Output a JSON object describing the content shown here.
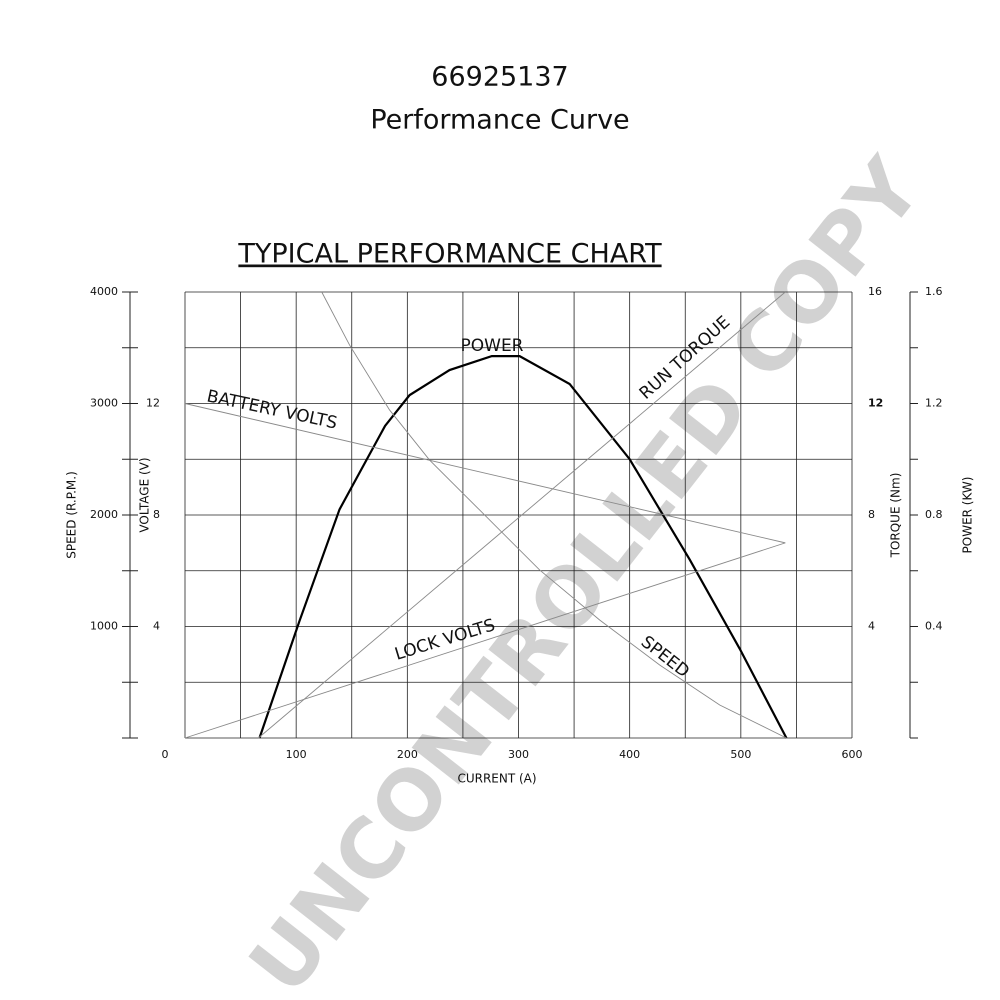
{
  "chart_data": {
    "type": "line",
    "title": "66925137",
    "subtitle": "Performance Curve",
    "chart_heading": "TYPICAL PERFORMANCE CHART",
    "watermark": "UNCONTROLLED COPY",
    "xlabel": "CURRENT (A)",
    "ylabel": "SPEED (R.P.M.)",
    "y2label": "VOLTAGE (V)",
    "y3label": "TORQUE (Nm)",
    "y4label": "POWER (KW)",
    "xlim": [
      0,
      600
    ],
    "xticks": [
      0,
      100,
      200,
      300,
      400,
      500,
      600
    ],
    "xgrid": [
      0,
      50,
      100,
      150,
      200,
      250,
      300,
      350,
      400,
      450,
      500,
      550,
      600
    ],
    "ylim": [
      0,
      4000
    ],
    "yticks": [
      1000,
      2000,
      3000,
      4000
    ],
    "ygrid": [
      0,
      500,
      1000,
      1500,
      2000,
      2500,
      3000,
      3500,
      4000
    ],
    "y2lim": [
      0,
      16
    ],
    "y2ticks": [
      4,
      8,
      12
    ],
    "y3lim": [
      0,
      16
    ],
    "y3ticks": [
      4,
      8,
      12,
      16
    ],
    "y4lim": [
      0,
      1.6
    ],
    "y4ticks": [
      0.4,
      0.8,
      1.2,
      1.6
    ],
    "series": [
      {
        "name": "POWER",
        "axis": "y4",
        "color": "#000000",
        "x": [
          67,
          103,
          139,
          180,
          202,
          238,
          276,
          301,
          346,
          400,
          454,
          499,
          541
        ],
        "values": [
          0,
          0.42,
          0.82,
          1.12,
          1.23,
          1.32,
          1.37,
          1.37,
          1.27,
          1.0,
          0.64,
          0.32,
          0
        ]
      },
      {
        "name": "BATTERY VOLTS",
        "axis": "y2",
        "color": "#8a8a8a",
        "x": [
          0,
          540
        ],
        "values": [
          12,
          7
        ]
      },
      {
        "name": "RUN TORQUE",
        "axis": "y3",
        "color": "#8a8a8a",
        "x": [
          66,
          540
        ],
        "values": [
          0,
          16
        ]
      },
      {
        "name": "LOCK VOLTS",
        "axis": "y2",
        "color": "#8a8a8a",
        "x": [
          0,
          540
        ],
        "values": [
          0,
          7
        ]
      },
      {
        "name": "SPEED",
        "axis": "y",
        "color": "#8a8a8a",
        "x": [
          123,
          148,
          184,
          220,
          265,
          319,
          373,
          427,
          481,
          541
        ],
        "values": [
          4000,
          3525,
          2942,
          2493,
          2045,
          1507,
          1058,
          655,
          296,
          0
        ]
      }
    ]
  }
}
